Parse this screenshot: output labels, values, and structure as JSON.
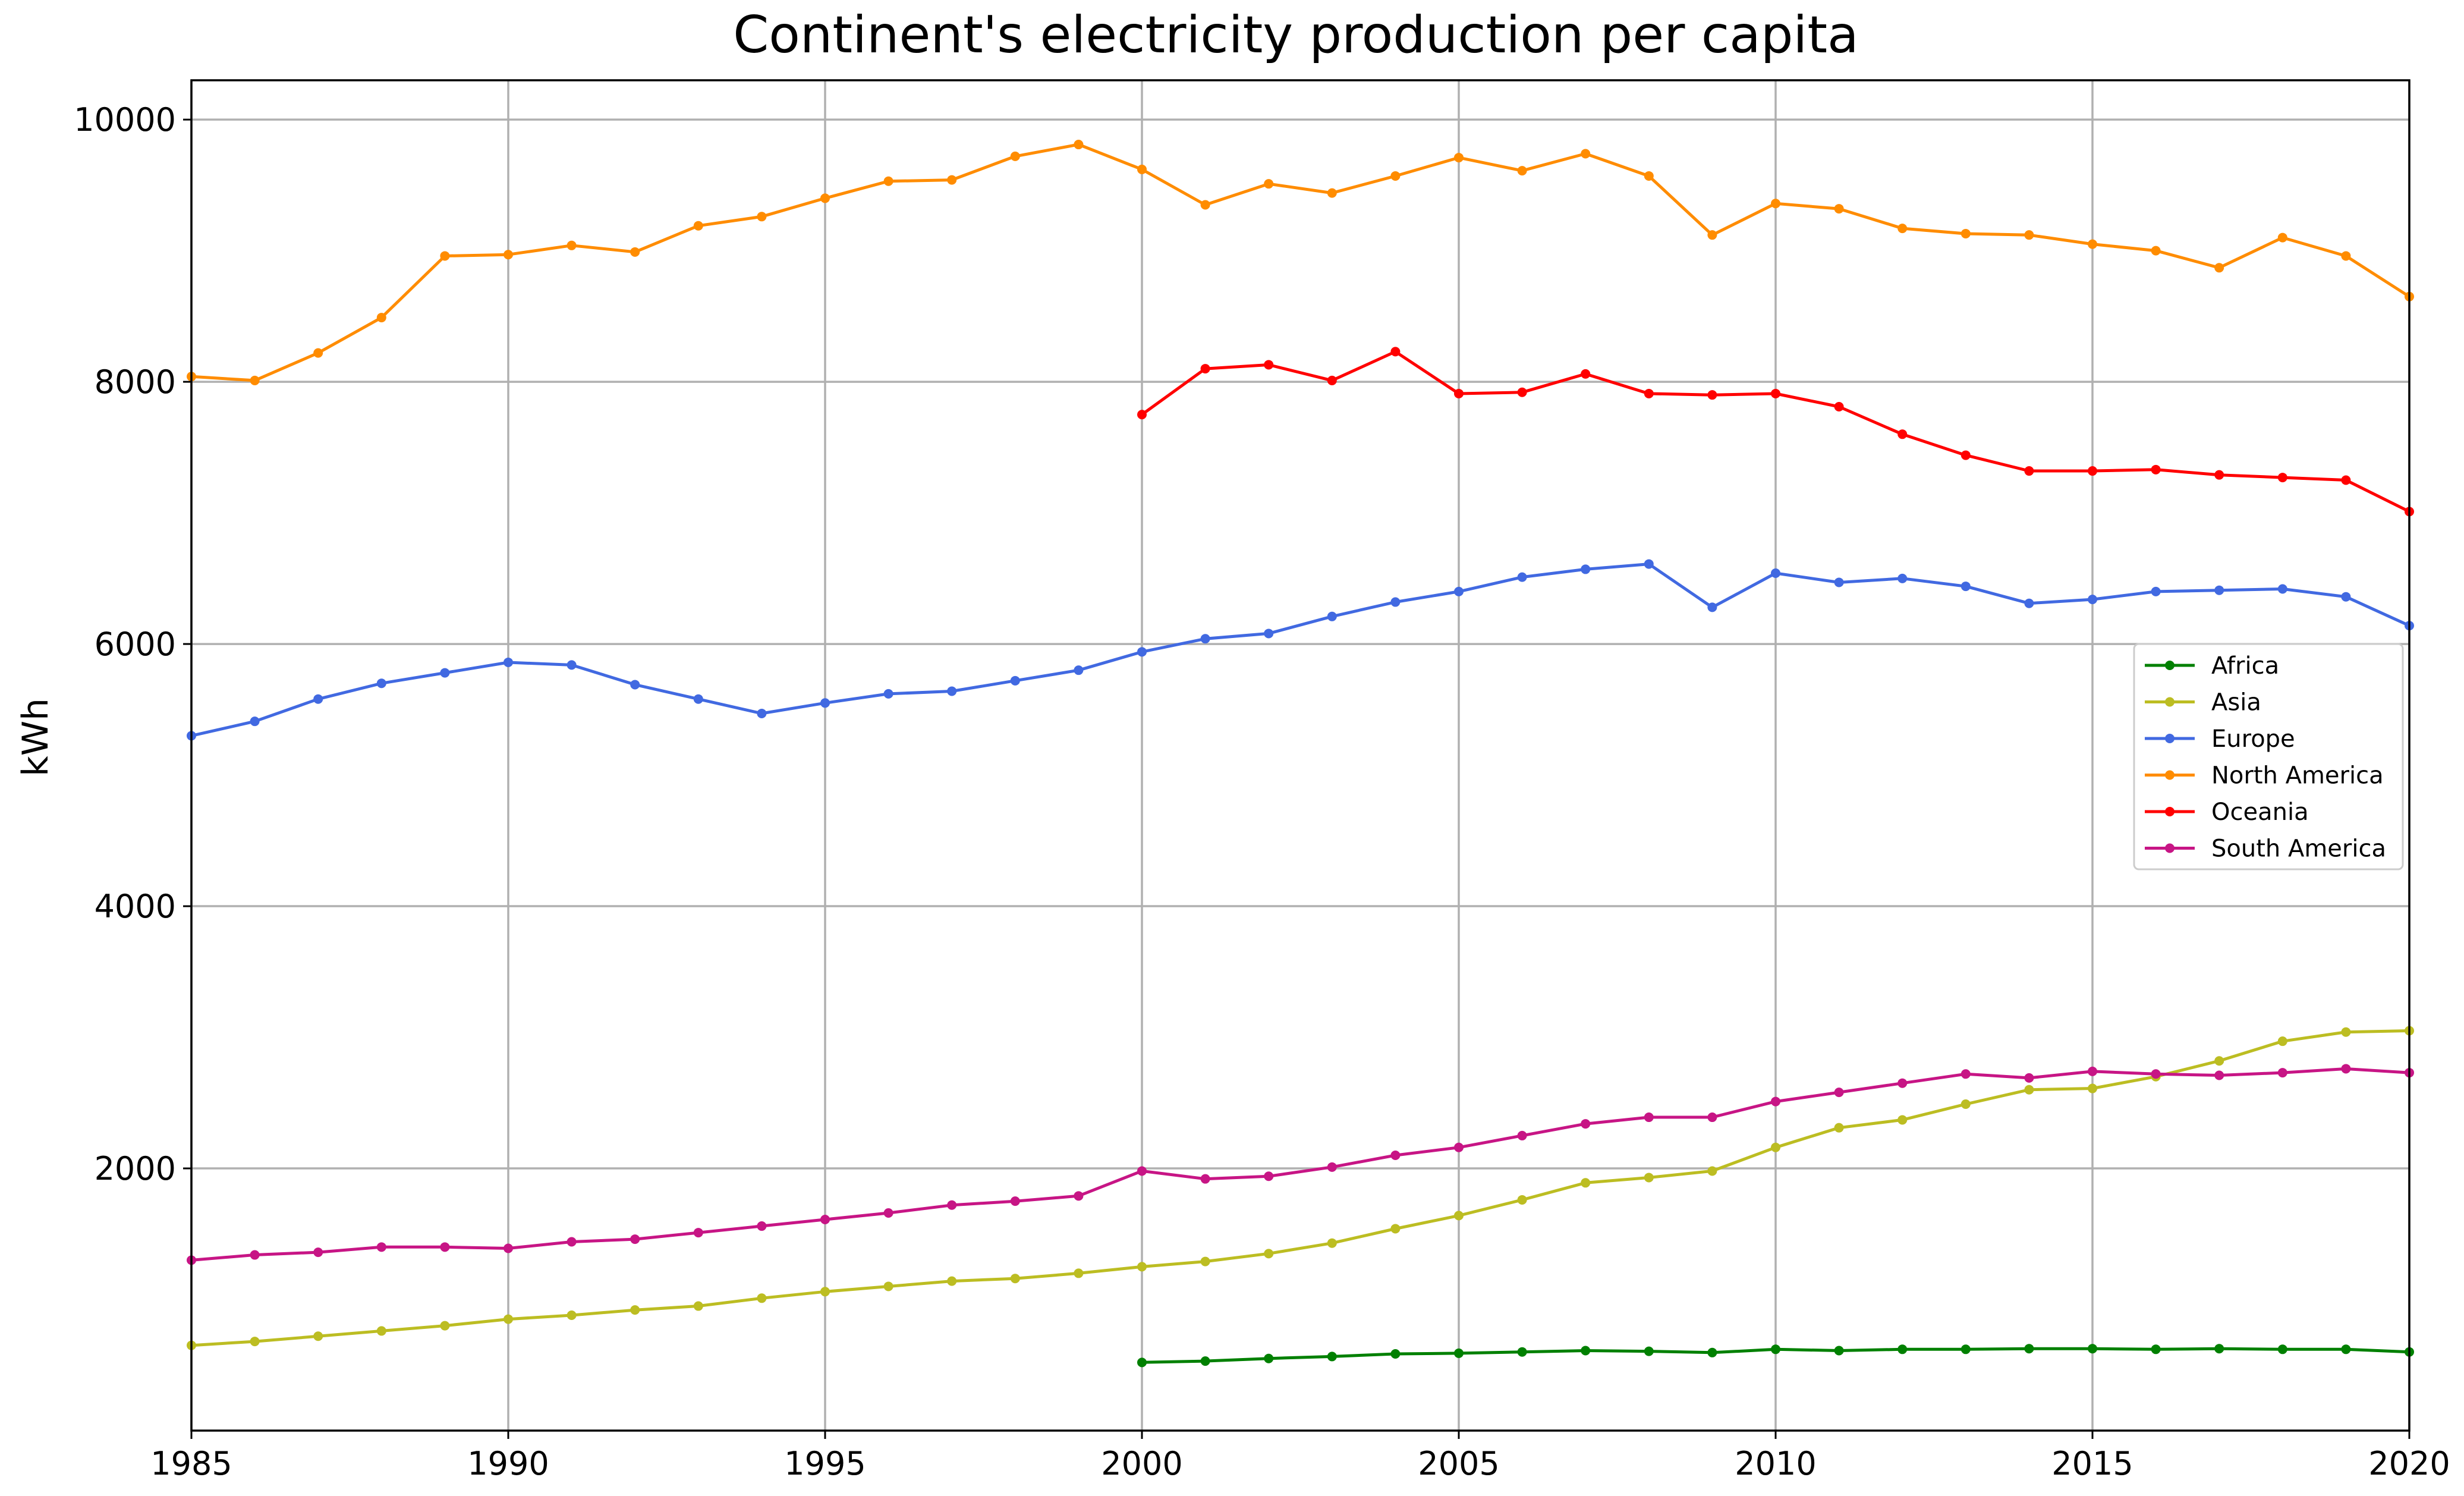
{
  "chart_data": {
    "type": "line",
    "title": "Continent's electricity production per capita",
    "xlabel": "",
    "ylabel": "kWh",
    "xlim": [
      1985,
      2020
    ],
    "ylim": [
      0,
      10300
    ],
    "x_ticks": [
      1985,
      1990,
      1995,
      2000,
      2005,
      2010,
      2015,
      2020
    ],
    "y_ticks": [
      2000,
      4000,
      6000,
      8000,
      10000
    ],
    "grid": true,
    "legend_position": "center-right",
    "series": [
      {
        "name": "Africa",
        "color": "#008000",
        "x": [
          2000,
          2001,
          2002,
          2003,
          2004,
          2005,
          2006,
          2007,
          2008,
          2009,
          2010,
          2011,
          2012,
          2013,
          2014,
          2015,
          2016,
          2017,
          2018,
          2019,
          2020
        ],
        "values": [
          520,
          530,
          550,
          565,
          585,
          590,
          600,
          610,
          605,
          595,
          620,
          610,
          620,
          620,
          625,
          625,
          620,
          625,
          620,
          620,
          600
        ]
      },
      {
        "name": "Asia",
        "color": "#bcbd22",
        "x": [
          1985,
          1986,
          1987,
          1988,
          1989,
          1990,
          1991,
          1992,
          1993,
          1994,
          1995,
          1996,
          1997,
          1998,
          1999,
          2000,
          2001,
          2002,
          2003,
          2004,
          2005,
          2006,
          2007,
          2008,
          2009,
          2010,
          2011,
          2012,
          2013,
          2014,
          2015,
          2016,
          2017,
          2018,
          2019,
          2020
        ],
        "values": [
          650,
          680,
          720,
          760,
          800,
          850,
          880,
          920,
          950,
          1010,
          1060,
          1100,
          1140,
          1160,
          1200,
          1250,
          1290,
          1350,
          1430,
          1540,
          1640,
          1760,
          1890,
          1930,
          1980,
          2160,
          2310,
          2370,
          2490,
          2600,
          2610,
          2700,
          2820,
          2970,
          3040,
          3050
        ]
      },
      {
        "name": "Europe",
        "color": "#4169e1",
        "x": [
          1985,
          1986,
          1987,
          1988,
          1989,
          1990,
          1991,
          1992,
          1993,
          1994,
          1995,
          1996,
          1997,
          1998,
          1999,
          2000,
          2001,
          2002,
          2003,
          2004,
          2005,
          2006,
          2007,
          2008,
          2009,
          2010,
          2011,
          2012,
          2013,
          2014,
          2015,
          2016,
          2017,
          2018,
          2019,
          2020
        ],
        "values": [
          5300,
          5410,
          5580,
          5700,
          5780,
          5860,
          5840,
          5690,
          5580,
          5470,
          5550,
          5620,
          5640,
          5720,
          5800,
          5940,
          6040,
          6080,
          6210,
          6320,
          6400,
          6510,
          6570,
          6610,
          6280,
          6540,
          6470,
          6500,
          6440,
          6310,
          6340,
          6400,
          6410,
          6420,
          6360,
          6140
        ]
      },
      {
        "name": "North America",
        "color": "#ff8c00",
        "x": [
          1985,
          1986,
          1987,
          1988,
          1989,
          1990,
          1991,
          1992,
          1993,
          1994,
          1995,
          1996,
          1997,
          1998,
          1999,
          2000,
          2001,
          2002,
          2003,
          2004,
          2005,
          2006,
          2007,
          2008,
          2009,
          2010,
          2011,
          2012,
          2013,
          2014,
          2015,
          2016,
          2017,
          2018,
          2019,
          2020
        ],
        "values": [
          8040,
          8010,
          8220,
          8490,
          8960,
          8970,
          9040,
          8990,
          9190,
          9260,
          9400,
          9530,
          9540,
          9720,
          9810,
          9620,
          9350,
          9510,
          9440,
          9570,
          9710,
          9610,
          9740,
          9570,
          9120,
          9360,
          9320,
          9170,
          9130,
          9120,
          9050,
          9000,
          8870,
          9100,
          8960,
          8650
        ]
      },
      {
        "name": "Oceania",
        "color": "#ff0000",
        "x": [
          2000,
          2001,
          2002,
          2003,
          2004,
          2005,
          2006,
          2007,
          2008,
          2009,
          2010,
          2011,
          2012,
          2013,
          2014,
          2015,
          2016,
          2017,
          2018,
          2019,
          2020
        ],
        "values": [
          7750,
          8100,
          8130,
          8010,
          8230,
          7910,
          7920,
          8060,
          7910,
          7900,
          7910,
          7810,
          7600,
          7440,
          7320,
          7320,
          7330,
          7290,
          7270,
          7250,
          7010
        ]
      },
      {
        "name": "South America",
        "color": "#c71585",
        "x": [
          1985,
          1986,
          1987,
          1988,
          1989,
          1990,
          1991,
          1992,
          1993,
          1994,
          1995,
          1996,
          1997,
          1998,
          1999,
          2000,
          2001,
          2002,
          2003,
          2004,
          2005,
          2006,
          2007,
          2008,
          2009,
          2010,
          2011,
          2012,
          2013,
          2014,
          2015,
          2016,
          2017,
          2018,
          2019,
          2020
        ],
        "values": [
          1300,
          1340,
          1360,
          1400,
          1400,
          1390,
          1440,
          1460,
          1510,
          1560,
          1610,
          1660,
          1720,
          1750,
          1790,
          1980,
          1920,
          1940,
          2010,
          2100,
          2160,
          2250,
          2340,
          2390,
          2390,
          2510,
          2580,
          2650,
          2720,
          2690,
          2740,
          2720,
          2710,
          2730,
          2760,
          2730
        ]
      }
    ]
  }
}
